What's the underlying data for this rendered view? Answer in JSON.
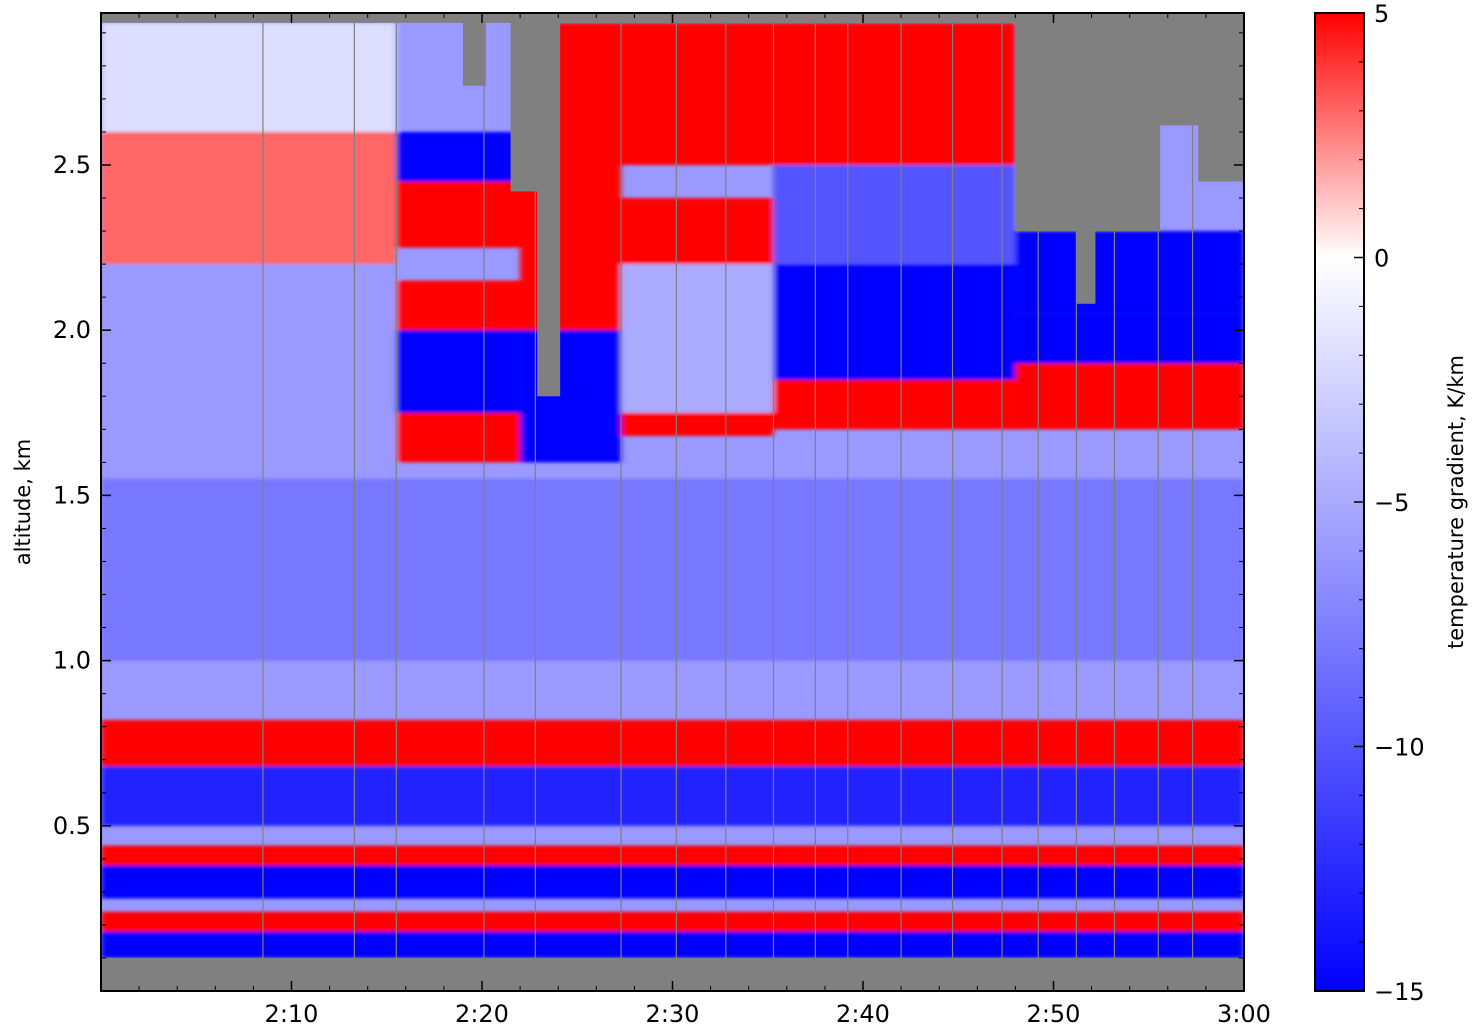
{
  "colors": {
    "no_data": "#808080",
    "cmap_low": "#0000ff",
    "cmap_mid": "#ffffff",
    "cmap_high": "#ff0000",
    "gridline": "#7f7f7f",
    "axes": "#000000"
  },
  "chart_data": {
    "type": "heatmap",
    "title": "",
    "xlabel": "",
    "ylabel": "altitude, km",
    "x_range": [
      "2:00",
      "3:00"
    ],
    "xlim_minutes": [
      0,
      60
    ],
    "ylim": [
      0.0,
      2.96
    ],
    "x_ticks": [
      {
        "t": 10,
        "label": "2:10"
      },
      {
        "t": 20,
        "label": "2:20"
      },
      {
        "t": 30,
        "label": "2:30"
      },
      {
        "t": 40,
        "label": "2:40"
      },
      {
        "t": 50,
        "label": "2:50"
      },
      {
        "t": 60,
        "label": "3:00"
      }
    ],
    "y_ticks": [
      {
        "v": 0.5,
        "label": "0.5"
      },
      {
        "v": 1.0,
        "label": "1.0"
      },
      {
        "v": 1.5,
        "label": "1.5"
      },
      {
        "v": 2.0,
        "label": "2.0"
      },
      {
        "v": 2.5,
        "label": "2.5"
      }
    ],
    "profile_times_minutes": [
      8.5,
      13.3,
      15.5,
      20.1,
      22.8,
      27.3,
      30.2,
      32.8,
      35.3,
      37.5,
      39.2,
      42.0,
      44.7,
      47.3,
      49.2,
      51.2,
      53.2,
      55.5,
      57.3
    ],
    "colorbar": {
      "label": "temperature gradient, K/km",
      "vmin": -15,
      "vmax": 5,
      "ticks": [
        {
          "v": 5,
          "label": "5"
        },
        {
          "v": 0,
          "label": "0"
        },
        {
          "v": -5,
          "label": "−5"
        },
        {
          "v": -10,
          "label": "−10"
        },
        {
          "v": -15,
          "label": "−15"
        }
      ]
    },
    "no_data_bottom_km": 0.1,
    "data_top_km": [
      {
        "t0": 0,
        "t1": 19.0,
        "alt": 2.93
      },
      {
        "t0": 19.0,
        "t1": 20.2,
        "alt": 2.74
      },
      {
        "t0": 20.2,
        "t1": 21.5,
        "alt": 2.93
      },
      {
        "t0": 21.5,
        "t1": 22.9,
        "alt": 2.42
      },
      {
        "t0": 22.9,
        "t1": 24.1,
        "alt": 1.8
      },
      {
        "t0": 24.1,
        "t1": 48.0,
        "alt": 2.93
      },
      {
        "t0": 48.0,
        "t1": 51.2,
        "alt": 2.3
      },
      {
        "t0": 51.2,
        "t1": 52.2,
        "alt": 2.08
      },
      {
        "t0": 52.2,
        "t1": 52.8,
        "alt": 2.3
      },
      {
        "t0": 52.8,
        "t1": 55.6,
        "alt": 2.3
      },
      {
        "t0": 55.6,
        "t1": 57.6,
        "alt": 2.62
      },
      {
        "t0": 57.6,
        "t1": 60.0,
        "alt": 2.45
      }
    ],
    "gradient_layers": [
      {
        "t0": 0,
        "t1": 15.5,
        "a0": 2.2,
        "a1": 2.6,
        "value": 3
      },
      {
        "t0": 0,
        "t1": 15.5,
        "a0": 2.6,
        "a1": 2.93,
        "value": -2
      },
      {
        "t0": 0,
        "t1": 15.5,
        "a0": 1.0,
        "a1": 2.2,
        "value": -6
      },
      {
        "t0": 15.5,
        "t1": 22.0,
        "a0": 2.25,
        "a1": 2.45,
        "value": 5
      },
      {
        "t0": 15.5,
        "t1": 22.0,
        "a0": 2.45,
        "a1": 2.6,
        "value": -15
      },
      {
        "t0": 15.5,
        "t1": 22.0,
        "a0": 2.0,
        "a1": 2.15,
        "value": 5
      },
      {
        "t0": 15.5,
        "t1": 22.0,
        "a0": 1.75,
        "a1": 2.0,
        "value": -15
      },
      {
        "t0": 15.5,
        "t1": 22.0,
        "a0": 1.6,
        "a1": 1.75,
        "value": 5
      },
      {
        "t0": 22.0,
        "t1": 27.3,
        "a0": 1.6,
        "a1": 2.0,
        "value": -15
      },
      {
        "t0": 22.0,
        "t1": 27.3,
        "a0": 2.0,
        "a1": 2.93,
        "value": 5
      },
      {
        "t0": 27.3,
        "t1": 35.3,
        "a0": 2.5,
        "a1": 2.93,
        "value": 5
      },
      {
        "t0": 27.3,
        "t1": 35.3,
        "a0": 2.2,
        "a1": 2.4,
        "value": 5
      },
      {
        "t0": 27.3,
        "t1": 35.3,
        "a0": 1.75,
        "a1": 2.2,
        "value": -5
      },
      {
        "t0": 27.3,
        "t1": 35.3,
        "a0": 1.68,
        "a1": 1.75,
        "value": 5
      },
      {
        "t0": 35.3,
        "t1": 48.0,
        "a0": 2.5,
        "a1": 2.93,
        "value": 5
      },
      {
        "t0": 35.3,
        "t1": 48.0,
        "a0": 2.2,
        "a1": 2.5,
        "value": -10
      },
      {
        "t0": 35.3,
        "t1": 48.0,
        "a0": 1.85,
        "a1": 2.2,
        "value": -15
      },
      {
        "t0": 35.3,
        "t1": 48.0,
        "a0": 1.7,
        "a1": 1.85,
        "value": 5
      },
      {
        "t0": 48.0,
        "t1": 60.0,
        "a0": 2.05,
        "a1": 2.3,
        "value": -15
      },
      {
        "t0": 48.0,
        "t1": 60.0,
        "a0": 1.7,
        "a1": 1.9,
        "value": 5
      },
      {
        "t0": 48.0,
        "t1": 60.0,
        "a0": 1.9,
        "a1": 2.05,
        "value": -15
      },
      {
        "t0": 0,
        "t1": 60.0,
        "a0": 1.0,
        "a1": 1.55,
        "value": -8
      },
      {
        "t0": 0,
        "t1": 60.0,
        "a0": 0.68,
        "a1": 0.82,
        "value": 5
      },
      {
        "t0": 0,
        "t1": 60.0,
        "a0": 0.5,
        "a1": 0.68,
        "value": -13
      },
      {
        "t0": 0,
        "t1": 60.0,
        "a0": 0.38,
        "a1": 0.44,
        "value": 5
      },
      {
        "t0": 0,
        "t1": 60.0,
        "a0": 0.28,
        "a1": 0.38,
        "value": -15
      },
      {
        "t0": 0,
        "t1": 60.0,
        "a0": 0.18,
        "a1": 0.24,
        "value": 5
      },
      {
        "t0": 0,
        "t1": 60.0,
        "a0": 0.1,
        "a1": 0.18,
        "value": -15
      }
    ]
  }
}
